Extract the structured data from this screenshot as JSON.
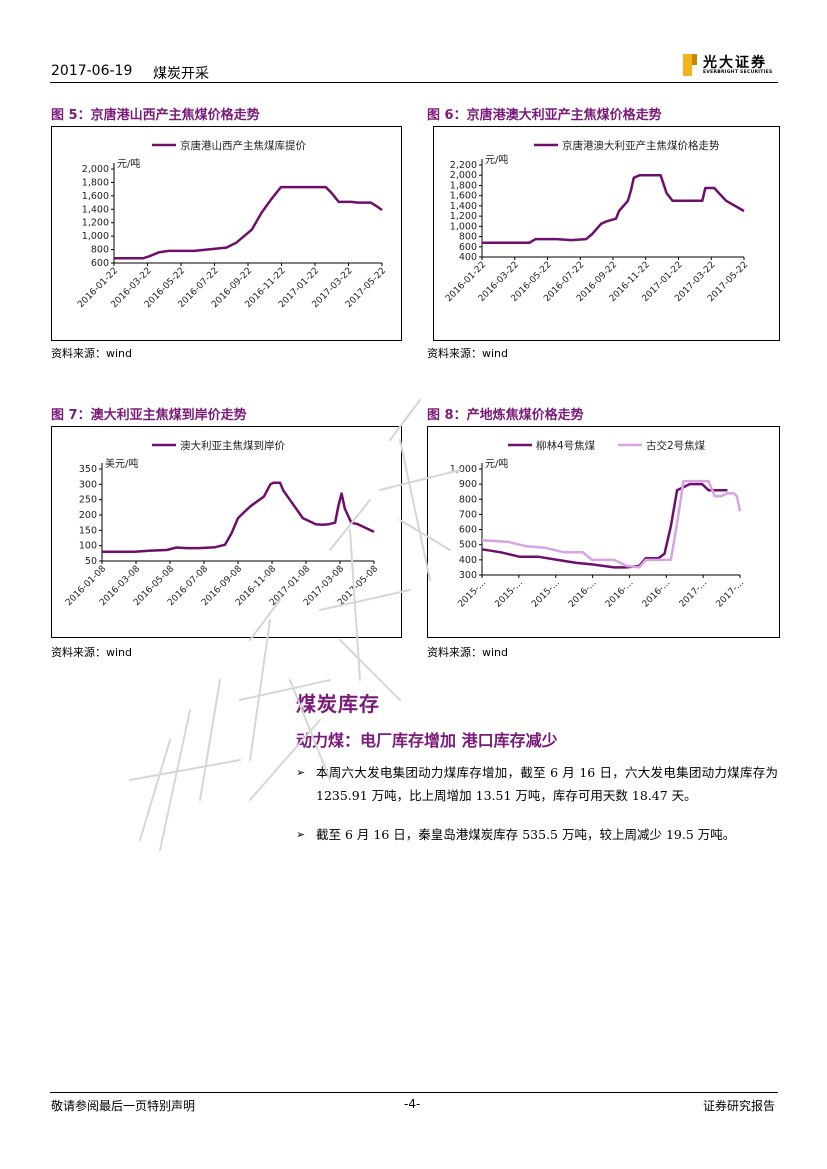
{
  "header": {
    "date": "2017-06-19",
    "title": "煤炭开采",
    "logo_cn": "光大证券",
    "logo_en": "EVERBRIGHT SECURITIES"
  },
  "colors": {
    "accent": "#7a1a78",
    "series1": "#6d0f6b",
    "series2": "#d9a3e3"
  },
  "figures": [
    {
      "caption": "图 5：京唐港山西产主焦煤价格走势",
      "source": "资料来源：wind",
      "chart_data": {
        "type": "line",
        "legend": [
          "京唐港山西产主焦煤库提价"
        ],
        "unit_label": "元/吨",
        "yticks": [
          "2,000",
          "1,800",
          "1,600",
          "1,400",
          "1,200",
          "1,000",
          "800",
          "600"
        ],
        "ylim": [
          600,
          2000
        ],
        "xticks": [
          "2016-01-22",
          "2016-03-22",
          "2016-05-22",
          "2016-07-22",
          "2016-09-22",
          "2016-11-22",
          "2017-01-22",
          "2017-03-22",
          "2017-05-22"
        ],
        "series": [
          {
            "name": "京唐港山西产主焦煤库提价",
            "x": [
              0,
              0.3,
              0.6,
              0.9,
              1.1,
              1.4,
              1.7,
              2.5,
              3.5,
              3.8,
              4.3,
              4.6,
              4.9,
              5.2,
              5.4,
              5.7,
              6.0,
              6.6,
              6.8,
              7.0,
              7.2,
              7.4,
              7.6,
              8.0,
              8.2,
              8.35
            ],
            "y": [
              670,
              670,
              670,
              670,
              700,
              760,
              780,
              780,
              830,
              900,
              1100,
              1350,
              1550,
              1730,
              1730,
              1730,
              1730,
              1730,
              1630,
              1510,
              1510,
              1510,
              1500,
              1500,
              1440,
              1390
            ]
          }
        ]
      }
    },
    {
      "caption": "图 6：京唐港澳大利亚产主焦煤价格走势",
      "source": "资料来源：wind",
      "chart_data": {
        "type": "line",
        "legend": [
          "京唐港澳大利亚产主焦煤价格走势"
        ],
        "unit_label": "元/吨",
        "yticks": [
          "2,200",
          "2,000",
          "1,800",
          "1,600",
          "1,400",
          "1,200",
          "1,000",
          "800",
          "600",
          "400"
        ],
        "ylim": [
          400,
          2200
        ],
        "xticks": [
          "2016-01-22",
          "2016-03-22",
          "2016-05-22",
          "2016-07-22",
          "2016-09-22",
          "2016-11-22",
          "2017-01-22",
          "2017-03-22",
          "2017-05-22"
        ],
        "series": [
          {
            "name": "京唐港澳大利亚产主焦煤价格走势",
            "x": [
              0,
              0.5,
              1.0,
              1.6,
              1.8,
              2.5,
              3.0,
              3.5,
              3.7,
              4.0,
              4.2,
              4.5,
              4.6,
              4.9,
              5.0,
              5.1,
              5.3,
              5.5,
              6.0,
              6.2,
              6.4,
              6.8,
              7.0,
              7.4,
              7.5,
              7.8,
              8.2,
              8.5,
              8.8
            ],
            "y": [
              680,
              680,
              680,
              680,
              750,
              750,
              730,
              750,
              850,
              1050,
              1100,
              1150,
              1300,
              1500,
              1700,
              1950,
              2000,
              2000,
              2000,
              1650,
              1500,
              1500,
              1500,
              1500,
              1750,
              1750,
              1500,
              1400,
              1300
            ]
          }
        ]
      }
    },
    {
      "caption": "图 7：澳大利亚主焦煤到岸价走势",
      "source": "资料来源：wind",
      "chart_data": {
        "type": "line",
        "legend": [
          "澳大利亚主焦煤到岸价"
        ],
        "unit_label": "美元/吨",
        "yticks": [
          "350",
          "300",
          "250",
          "200",
          "150",
          "100",
          "50"
        ],
        "ylim": [
          50,
          350
        ],
        "xticks": [
          "2016-01-08",
          "2016-03-08",
          "2016-05-08",
          "2016-07-08",
          "2016-09-08",
          "2016-11-08",
          "2017-01-08",
          "2017-03-08",
          "2017-05-08"
        ],
        "series": [
          {
            "name": "澳大利亚主焦煤到岸价",
            "x": [
              0,
              0.5,
              1.0,
              1.5,
              2.0,
              2.3,
              2.6,
              3.0,
              3.5,
              3.8,
              4.0,
              4.2,
              4.4,
              4.6,
              5.0,
              5.2,
              5.3,
              5.5,
              5.6,
              5.8,
              6.0,
              6.2,
              6.4,
              6.6,
              6.8,
              7.0,
              7.2,
              7.3,
              7.4,
              7.5,
              7.7,
              7.9,
              8.1,
              8.4
            ],
            "y": [
              80,
              80,
              80,
              84,
              86,
              94,
              92,
              92,
              95,
              103,
              140,
              190,
              210,
              230,
              260,
              300,
              305,
              305,
              280,
              250,
              220,
              190,
              180,
              170,
              168,
              170,
              175,
              230,
              270,
              220,
              175,
              170,
              160,
              145
            ]
          }
        ]
      }
    },
    {
      "caption": "图 8：产地炼焦煤价格走势",
      "source": "资料来源：wind",
      "chart_data": {
        "type": "line",
        "legend": [
          "柳林4号焦煤",
          "古交2号焦煤"
        ],
        "unit_label": "元/吨",
        "yticks": [
          "1,000",
          "900",
          "800",
          "700",
          "600",
          "500",
          "400",
          "300"
        ],
        "ylim": [
          300,
          1000
        ],
        "xticks": [
          "2015-...",
          "2015-...",
          "2015-...",
          "2016-...",
          "2016-...",
          "2016-...",
          "2017-...",
          "2017-..."
        ],
        "series": [
          {
            "name": "柳林4号焦煤",
            "x": [
              0,
              0.6,
              1.2,
              1.8,
              2.4,
              3.0,
              3.5,
              4.2,
              4.6,
              5.0,
              5.2,
              5.4,
              5.6,
              5.8,
              6.0,
              6.2,
              6.6,
              6.8,
              7.0,
              7.2,
              7.4,
              7.6,
              7.8
            ],
            "y": [
              470,
              450,
              420,
              420,
              400,
              380,
              370,
              350,
              350,
              360,
              410,
              410,
              410,
              440,
              620,
              860,
              900,
              900,
              900,
              860,
              860,
              860,
              860
            ]
          },
          {
            "name": "古交2号焦煤",
            "x": [
              0,
              0.8,
              1.4,
              2.0,
              2.6,
              3.2,
              3.5,
              4.2,
              4.6,
              5.0,
              5.2,
              5.6,
              6.0,
              6.2,
              6.4,
              6.8,
              7.0,
              7.2,
              7.4,
              7.6,
              7.8,
              8.0,
              8.1,
              8.2
            ],
            "y": [
              530,
              520,
              490,
              480,
              450,
              450,
              400,
              400,
              360,
              350,
              400,
              400,
              400,
              640,
              920,
              920,
              920,
              920,
              820,
              820,
              840,
              840,
              820,
              720
            ]
          }
        ]
      }
    }
  ],
  "section": {
    "title": "煤炭库存",
    "subtitle": "动力煤：电厂库存增加 港口库存减少",
    "bullets": [
      "本周六大发电集团动力煤库存增加，截至 6 月 16 日，六大发电集团动力煤库存为 1235.91 万吨，比上周增加 13.51 万吨，库存可用天数 18.47 天。",
      "截至 6 月 16 日，秦皇岛港煤炭库存 535.5 万吨，较上周减少 19.5 万吨。"
    ]
  },
  "footer": {
    "left": "敬请参阅最后一页特别声明",
    "page": "-4-",
    "right": "证券研究报告"
  }
}
